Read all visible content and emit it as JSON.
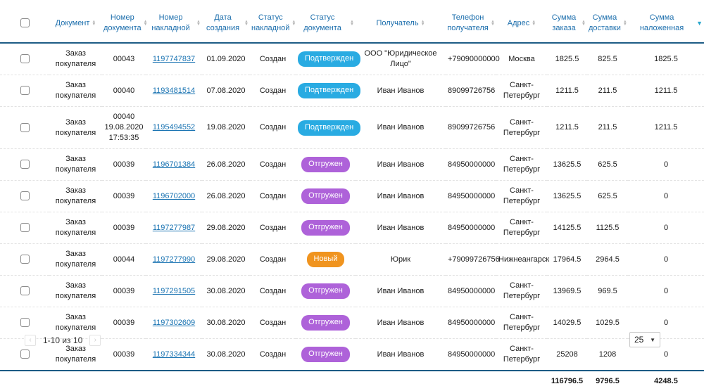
{
  "colors": {
    "header_text": "#1d6fad",
    "header_rule": "#1d5c85",
    "link": "#1973b2",
    "sort_active": "#2aa7cc",
    "badge_confirmed": "#29abe2",
    "badge_shipped": "#ae62d9",
    "badge_new": "#f0941f"
  },
  "table": {
    "columns": [
      {
        "key": "document",
        "label": "Документ",
        "sort": "none"
      },
      {
        "key": "doc-number",
        "label": "Номер документа",
        "sort": "none"
      },
      {
        "key": "invoice-number",
        "label": "Номер накладной",
        "sort": "none"
      },
      {
        "key": "created-date",
        "label": "Дата создания",
        "sort": "none"
      },
      {
        "key": "invoice-status",
        "label": "Статус накладной",
        "sort": "none"
      },
      {
        "key": "doc-status",
        "label": "Статус документа",
        "sort": "none"
      },
      {
        "key": "recipient",
        "label": "Получатель",
        "sort": "none"
      },
      {
        "key": "phone",
        "label": "Телефон получателя",
        "sort": "none"
      },
      {
        "key": "address",
        "label": "Адрес",
        "sort": "none"
      },
      {
        "key": "order-sum",
        "label": "Сумма заказа",
        "sort": "none"
      },
      {
        "key": "delivery-sum",
        "label": "Сумма доставки",
        "sort": "none"
      },
      {
        "key": "cod-sum",
        "label": "Сумма наложенная",
        "sort": "desc"
      }
    ],
    "rows": [
      {
        "document": "Заказ покупателя",
        "doc_number": "00043",
        "invoice_number": "1197747837",
        "created_date": "01.09.2020",
        "invoice_status": "Создан",
        "doc_status": "Подтвержден",
        "doc_status_type": "confirmed",
        "recipient": "ООО \"Юридическое Лицо\"",
        "phone": "+79090000000",
        "address": "Москва",
        "order_sum": "1825.5",
        "delivery_sum": "825.5",
        "cod_sum": "1825.5"
      },
      {
        "document": "Заказ покупателя",
        "doc_number": "00040",
        "invoice_number": "1193481514",
        "created_date": "07.08.2020",
        "invoice_status": "Создан",
        "doc_status": "Подтвержден",
        "doc_status_type": "confirmed",
        "recipient": "Иван Иванов",
        "phone": "89099726756",
        "address": "Санкт-Петербург",
        "order_sum": "1211.5",
        "delivery_sum": "211.5",
        "cod_sum": "1211.5"
      },
      {
        "document": "Заказ покупателя",
        "doc_number": "00040\n19.08.2020\n17:53:35",
        "invoice_number": "1195494552",
        "created_date": "19.08.2020",
        "invoice_status": "Создан",
        "doc_status": "Подтвержден",
        "doc_status_type": "confirmed",
        "recipient": "Иван Иванов",
        "phone": "89099726756",
        "address": "Санкт-Петербург",
        "order_sum": "1211.5",
        "delivery_sum": "211.5",
        "cod_sum": "1211.5"
      },
      {
        "document": "Заказ покупателя",
        "doc_number": "00039",
        "invoice_number": "1196701384",
        "created_date": "26.08.2020",
        "invoice_status": "Создан",
        "doc_status": "Отгружен",
        "doc_status_type": "shipped",
        "recipient": "Иван Иванов",
        "phone": "84950000000",
        "address": "Санкт-Петербург",
        "order_sum": "13625.5",
        "delivery_sum": "625.5",
        "cod_sum": "0"
      },
      {
        "document": "Заказ покупателя",
        "doc_number": "00039",
        "invoice_number": "1196702000",
        "created_date": "26.08.2020",
        "invoice_status": "Создан",
        "doc_status": "Отгружен",
        "doc_status_type": "shipped",
        "recipient": "Иван Иванов",
        "phone": "84950000000",
        "address": "Санкт-Петербург",
        "order_sum": "13625.5",
        "delivery_sum": "625.5",
        "cod_sum": "0"
      },
      {
        "document": "Заказ покупателя",
        "doc_number": "00039",
        "invoice_number": "1197277987",
        "created_date": "29.08.2020",
        "invoice_status": "Создан",
        "doc_status": "Отгружен",
        "doc_status_type": "shipped",
        "recipient": "Иван Иванов",
        "phone": "84950000000",
        "address": "Санкт-Петербург",
        "order_sum": "14125.5",
        "delivery_sum": "1125.5",
        "cod_sum": "0"
      },
      {
        "document": "Заказ покупателя",
        "doc_number": "00044",
        "invoice_number": "1197277990",
        "created_date": "29.08.2020",
        "invoice_status": "Создан",
        "doc_status": "Новый",
        "doc_status_type": "new",
        "recipient": "Юрик",
        "phone": "+79099726756",
        "address": "Нижнеангарск",
        "order_sum": "17964.5",
        "delivery_sum": "2964.5",
        "cod_sum": "0"
      },
      {
        "document": "Заказ покупателя",
        "doc_number": "00039",
        "invoice_number": "1197291505",
        "created_date": "30.08.2020",
        "invoice_status": "Создан",
        "doc_status": "Отгружен",
        "doc_status_type": "shipped",
        "recipient": "Иван Иванов",
        "phone": "84950000000",
        "address": "Санкт-Петербург",
        "order_sum": "13969.5",
        "delivery_sum": "969.5",
        "cod_sum": "0"
      },
      {
        "document": "Заказ покупателя",
        "doc_number": "00039",
        "invoice_number": "1197302609",
        "created_date": "30.08.2020",
        "invoice_status": "Создан",
        "doc_status": "Отгружен",
        "doc_status_type": "shipped",
        "recipient": "Иван Иванов",
        "phone": "84950000000",
        "address": "Санкт-Петербург",
        "order_sum": "14029.5",
        "delivery_sum": "1029.5",
        "cod_sum": "0"
      },
      {
        "document": "Заказ покупателя",
        "doc_number": "00039",
        "invoice_number": "1197334344",
        "created_date": "30.08.2020",
        "invoice_status": "Создан",
        "doc_status": "Отгружен",
        "doc_status_type": "shipped",
        "recipient": "Иван Иванов",
        "phone": "84950000000",
        "address": "Санкт-Петербург",
        "order_sum": "25208",
        "delivery_sum": "1208",
        "cod_sum": "0"
      }
    ],
    "totals": {
      "order_sum": "116796.5",
      "delivery_sum": "9796.5",
      "cod_sum": "4248.5"
    }
  },
  "pagination": {
    "prev": "‹",
    "next": "›",
    "range_label": "1-10 из 10"
  },
  "page_size": {
    "value": "25"
  }
}
